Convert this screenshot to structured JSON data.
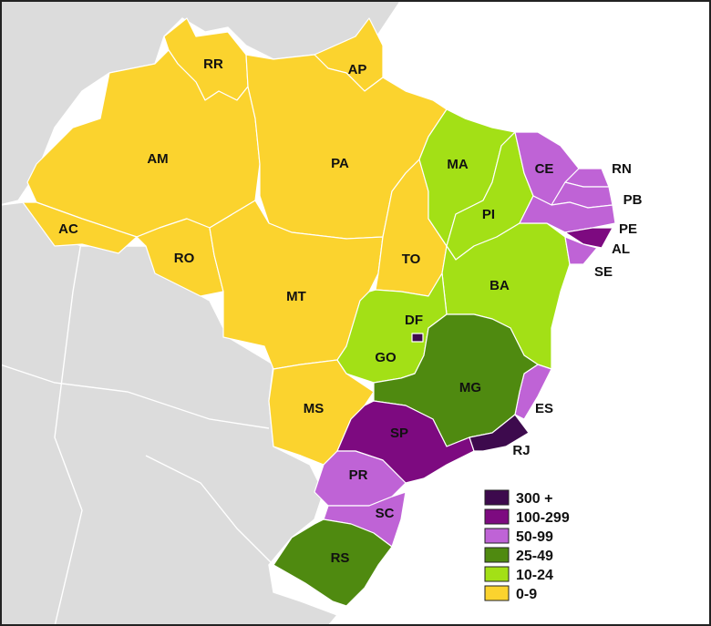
{
  "map": {
    "colors": {
      "300+": "#3d0a4d",
      "100-299": "#7d0a80",
      "50-99": "#bf63d6",
      "25-49": "#4f8a10",
      "10-24": "#a3e016",
      "0-9": "#fbd32e",
      "neighbor": "#dcdcdc",
      "ocean": "#ffffff"
    },
    "states": [
      {
        "abbr": "RR",
        "class": "0-9"
      },
      {
        "abbr": "AP",
        "class": "0-9"
      },
      {
        "abbr": "AM",
        "class": "0-9"
      },
      {
        "abbr": "PA",
        "class": "0-9"
      },
      {
        "abbr": "AC",
        "class": "0-9"
      },
      {
        "abbr": "RO",
        "class": "0-9"
      },
      {
        "abbr": "MT",
        "class": "0-9"
      },
      {
        "abbr": "TO",
        "class": "0-9"
      },
      {
        "abbr": "MS",
        "class": "0-9"
      },
      {
        "abbr": "MA",
        "class": "10-24"
      },
      {
        "abbr": "PI",
        "class": "10-24"
      },
      {
        "abbr": "BA",
        "class": "10-24"
      },
      {
        "abbr": "GO",
        "class": "10-24"
      },
      {
        "abbr": "CE",
        "class": "50-99"
      },
      {
        "abbr": "RN",
        "class": "50-99"
      },
      {
        "abbr": "PB",
        "class": "50-99"
      },
      {
        "abbr": "PE",
        "class": "50-99"
      },
      {
        "abbr": "AL",
        "class": "100-299"
      },
      {
        "abbr": "SE",
        "class": "50-99"
      },
      {
        "abbr": "ES",
        "class": "50-99"
      },
      {
        "abbr": "PR",
        "class": "50-99"
      },
      {
        "abbr": "SC",
        "class": "50-99"
      },
      {
        "abbr": "MG",
        "class": "25-49"
      },
      {
        "abbr": "RS",
        "class": "25-49"
      },
      {
        "abbr": "SP",
        "class": "100-299"
      },
      {
        "abbr": "RJ",
        "class": "300+"
      },
      {
        "abbr": "DF",
        "class": "300+"
      }
    ],
    "legend": [
      {
        "label": "300 +",
        "color": "#3d0a4d"
      },
      {
        "label": "100-299",
        "color": "#7d0a80"
      },
      {
        "label": "50-99",
        "color": "#bf63d6"
      },
      {
        "label": "25-49",
        "color": "#4f8a10"
      },
      {
        "label": "10-24",
        "color": "#a3e016"
      },
      {
        "label": "0-9",
        "color": "#fbd32e"
      }
    ]
  }
}
